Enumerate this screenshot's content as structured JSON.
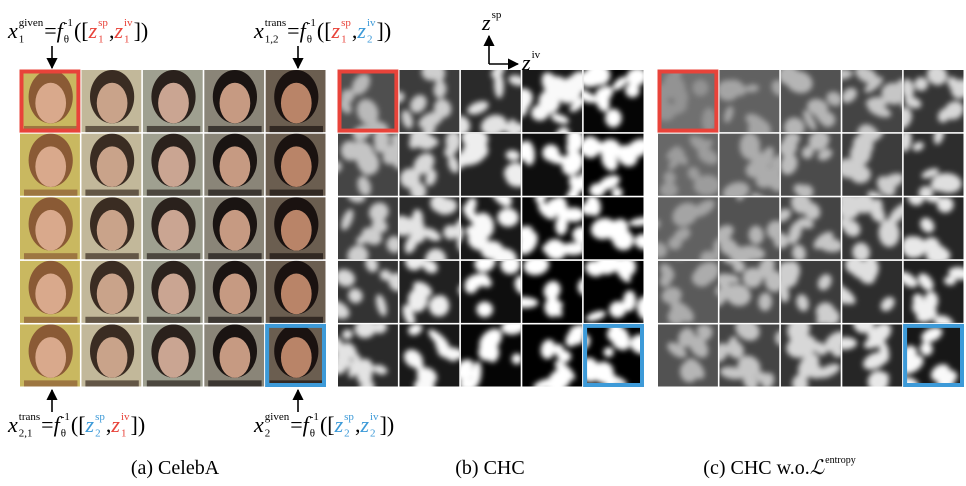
{
  "formulas": [
    {
      "tokens": [
        {
          "t": "x",
          "i": true,
          "sup": "given",
          "sub": "1"
        },
        {
          "t": "="
        },
        {
          "t": "f",
          "i": true,
          "sup": "-1",
          "sub": "θ"
        },
        {
          "t": "(["
        },
        {
          "t": "z",
          "i": true,
          "sup": "sp",
          "sub": "1",
          "c": "#e8433a"
        },
        {
          "t": ","
        },
        {
          "t": "z",
          "i": true,
          "sup": "iv",
          "sub": "1",
          "c": "#e8433a"
        },
        {
          "t": "])"
        }
      ]
    },
    {
      "tokens": [
        {
          "t": "x",
          "i": true,
          "sup": "trans",
          "sub": "1,2"
        },
        {
          "t": "="
        },
        {
          "t": "f",
          "i": true,
          "sup": "-1",
          "sub": "θ"
        },
        {
          "t": "(["
        },
        {
          "t": "z",
          "i": true,
          "sup": "sp",
          "sub": "1",
          "c": "#e8433a"
        },
        {
          "t": ","
        },
        {
          "t": "z",
          "i": true,
          "sup": "iv",
          "sub": "2",
          "c": "#3d9ad8"
        },
        {
          "t": "])"
        }
      ]
    },
    {
      "tokens": [
        {
          "t": "x",
          "i": true,
          "sup": "trans",
          "sub": "2,1"
        },
        {
          "t": "="
        },
        {
          "t": "f",
          "i": true,
          "sup": "-1",
          "sub": "θ"
        },
        {
          "t": "(["
        },
        {
          "t": "z",
          "i": true,
          "sup": "sp",
          "sub": "2",
          "c": "#3d9ad8"
        },
        {
          "t": ","
        },
        {
          "t": "z",
          "i": true,
          "sup": "iv",
          "sub": "1",
          "c": "#e8433a"
        },
        {
          "t": "])"
        }
      ]
    },
    {
      "tokens": [
        {
          "t": "x",
          "i": true,
          "sup": "given",
          "sub": "2"
        },
        {
          "t": "="
        },
        {
          "t": "f",
          "i": true,
          "sup": "-1",
          "sub": "θ"
        },
        {
          "t": "(["
        },
        {
          "t": "z",
          "i": true,
          "sup": "sp",
          "sub": "2",
          "c": "#3d9ad8"
        },
        {
          "t": ","
        },
        {
          "t": "z",
          "i": true,
          "sup": "iv",
          "sub": "2",
          "c": "#3d9ad8"
        },
        {
          "t": "])"
        }
      ]
    }
  ],
  "axis_labels": [
    {
      "tokens": [
        {
          "t": "z",
          "i": true,
          "sup": "sp"
        }
      ]
    },
    {
      "tokens": [
        {
          "t": "z",
          "i": true,
          "sup": "iv"
        }
      ]
    }
  ],
  "captions": [
    {
      "tokens": [
        {
          "t": "(a) CelebA"
        }
      ]
    },
    {
      "tokens": [
        {
          "t": "(b) CHC"
        }
      ]
    },
    {
      "tokens": [
        {
          "t": "(c) CHC w.o. "
        },
        {
          "t": "ℒ",
          "i": true,
          "sup": "entropy"
        }
      ]
    }
  ]
}
